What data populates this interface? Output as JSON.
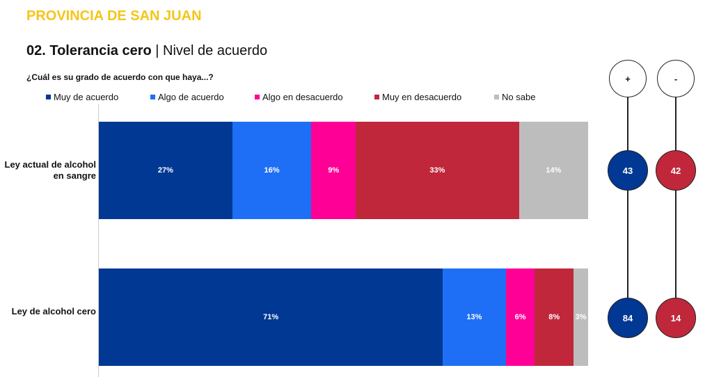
{
  "header": {
    "province": "PROVINCIA DE SAN JUAN",
    "title_bold": "02. Tolerancia cero",
    "title_sep": " | ",
    "title_rest": "Nivel de acuerdo",
    "question": "¿Cuál es su grado de acuerdo con que haya...?"
  },
  "chart_data": {
    "type": "bar",
    "orientation": "horizontal-stacked-100",
    "categories": [
      "Ley actual de alcohol en sangre",
      "Ley de alcohol cero"
    ],
    "series": [
      {
        "name": "Muy de acuerdo",
        "color": "#003893",
        "values": [
          27,
          71
        ],
        "labels": [
          "27%",
          "71%"
        ]
      },
      {
        "name": "Algo de acuerdo",
        "color": "#1e6ff5",
        "values": [
          16,
          13
        ],
        "labels": [
          "16%",
          "13%"
        ]
      },
      {
        "name": "Algo en desacuerdo",
        "color": "#ff0096",
        "values": [
          9,
          6
        ],
        "labels": [
          "9%",
          "6%"
        ]
      },
      {
        "name": "Muy en desacuerdo",
        "color": "#c0273a",
        "values": [
          33,
          8
        ],
        "labels": [
          "33%",
          "8%"
        ]
      },
      {
        "name": "No sabe",
        "color": "#bdbdbd",
        "values": [
          14,
          3
        ],
        "labels": [
          "14%",
          "3%"
        ]
      }
    ],
    "legend": "top",
    "summary": {
      "headers": [
        "+",
        "-"
      ],
      "plus": [
        43,
        84
      ],
      "minus": [
        42,
        14
      ],
      "plus_color": "#003893",
      "minus_color": "#c0273a"
    }
  }
}
